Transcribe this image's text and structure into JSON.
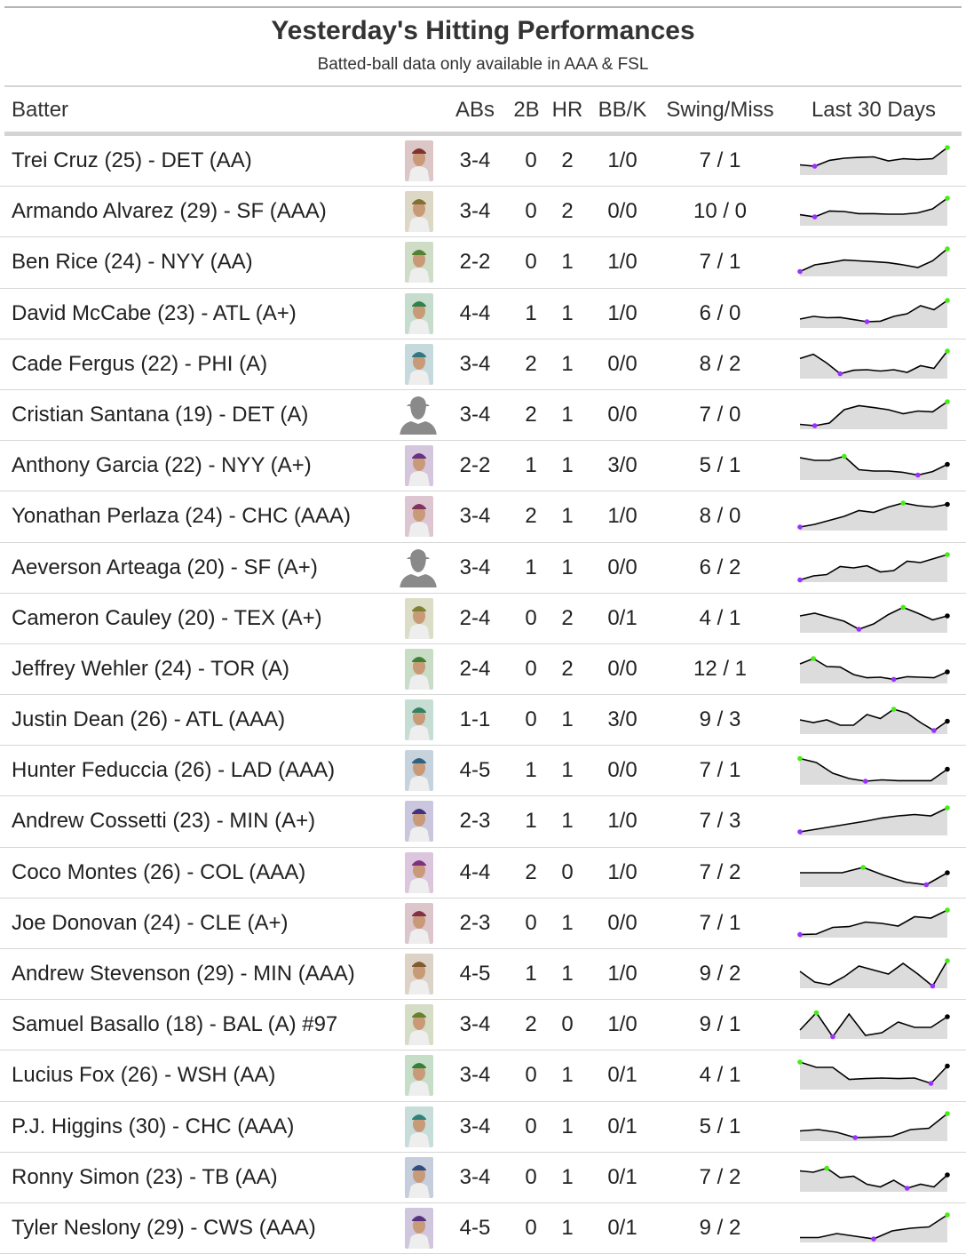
{
  "title": "Yesterday's Hitting Performances",
  "subtitle": "Batted-ball data only available in AAA & FSL",
  "columns": {
    "batter": "Batter",
    "abs": "ABs",
    "doubles": "2B",
    "hr": "HR",
    "bbk": "BB/K",
    "swing_miss": "Swing/Miss",
    "last30": "Last 30 Days"
  },
  "colors": {
    "fill": "#dcdcdc",
    "line": "#000000",
    "max_dot": "#44ee11",
    "min_dot": "#9b30ff",
    "last_dot": "#000000"
  },
  "rows": [
    {
      "batter": "Trei Cruz (25) - DET (AA)",
      "photo": "player-photo",
      "abs": "3-4",
      "doubles": "0",
      "hr": "2",
      "bbk": "1/0",
      "swing_miss": "7 / 1",
      "spark": [
        0.35,
        0.3,
        0.52,
        0.6,
        0.63,
        0.65,
        0.5,
        0.58,
        0.55,
        0.58,
        1.0
      ]
    },
    {
      "batter": "Armando Alvarez (29) - SF (AAA)",
      "photo": "player-photo",
      "abs": "3-4",
      "doubles": "0",
      "hr": "2",
      "bbk": "0/0",
      "swing_miss": "10 / 0",
      "spark": [
        0.38,
        0.3,
        0.52,
        0.5,
        0.42,
        0.42,
        0.4,
        0.4,
        0.45,
        0.6,
        1.0
      ]
    },
    {
      "batter": "Ben Rice (24) - NYY (AA)",
      "photo": "player-photo",
      "abs": "2-2",
      "doubles": "0",
      "hr": "1",
      "bbk": "1/0",
      "swing_miss": "7 / 1",
      "spark": [
        0.15,
        0.4,
        0.48,
        0.58,
        0.55,
        0.52,
        0.48,
        0.4,
        0.3,
        0.55,
        1.0
      ]
    },
    {
      "batter": "David McCabe (23) - ATL (A+)",
      "photo": "player-photo",
      "abs": "4-4",
      "doubles": "1",
      "hr": "1",
      "bbk": "1/0",
      "swing_miss": "6 / 0",
      "spark": [
        0.3,
        0.4,
        0.35,
        0.36,
        0.28,
        0.2,
        0.22,
        0.4,
        0.5,
        0.8,
        0.65,
        1.0
      ]
    },
    {
      "batter": "Cade Fergus (22) - PHI (A)",
      "photo": "player-photo",
      "abs": "3-4",
      "doubles": "2",
      "hr": "1",
      "bbk": "0/0",
      "swing_miss": "8 / 2",
      "spark": [
        0.72,
        0.88,
        0.55,
        0.15,
        0.28,
        0.3,
        0.25,
        0.3,
        0.2,
        0.45,
        0.35,
        1.0
      ]
    },
    {
      "batter": "Cristian Santana (19) - DET (A)",
      "photo": "silhouette",
      "abs": "3-4",
      "doubles": "2",
      "hr": "1",
      "bbk": "0/0",
      "swing_miss": "7 / 0",
      "spark": [
        0.15,
        0.1,
        0.2,
        0.7,
        0.85,
        0.78,
        0.7,
        0.55,
        0.65,
        0.62,
        1.0
      ]
    },
    {
      "batter": "Anthony Garcia (22) - NYY (A+)",
      "photo": "player-photo",
      "abs": "2-2",
      "doubles": "1",
      "hr": "1",
      "bbk": "3/0",
      "swing_miss": "5 / 1",
      "spark": [
        0.8,
        0.7,
        0.7,
        0.85,
        0.35,
        0.3,
        0.3,
        0.25,
        0.15,
        0.28,
        0.55
      ]
    },
    {
      "batter": "Yonathan Perlaza (24) - CHC (AAA)",
      "photo": "player-photo",
      "abs": "3-4",
      "doubles": "2",
      "hr": "1",
      "bbk": "1/0",
      "swing_miss": "8 / 0",
      "spark": [
        0.1,
        0.2,
        0.35,
        0.5,
        0.72,
        0.65,
        0.85,
        1.0,
        0.9,
        0.85,
        0.95
      ]
    },
    {
      "batter": "Aeverson Arteaga (20) - SF (A+)",
      "photo": "silhouette",
      "abs": "3-4",
      "doubles": "1",
      "hr": "1",
      "bbk": "0/0",
      "swing_miss": "6 / 2",
      "spark": [
        0.05,
        0.2,
        0.25,
        0.55,
        0.5,
        0.58,
        0.35,
        0.4,
        0.75,
        0.7,
        0.85,
        1.0
      ]
    },
    {
      "batter": "Cameron Cauley (20) - TEX (A+)",
      "photo": "player-photo",
      "abs": "2-4",
      "doubles": "0",
      "hr": "2",
      "bbk": "0/1",
      "swing_miss": "4 / 1",
      "spark": [
        0.6,
        0.7,
        0.55,
        0.4,
        0.1,
        0.3,
        0.65,
        0.92,
        0.7,
        0.45,
        0.6
      ]
    },
    {
      "batter": "Jeffrey Wehler (24) - TOR (A)",
      "photo": "player-photo",
      "abs": "2-4",
      "doubles": "0",
      "hr": "2",
      "bbk": "0/0",
      "swing_miss": "12 / 1",
      "spark": [
        0.7,
        0.9,
        0.6,
        0.58,
        0.3,
        0.18,
        0.2,
        0.12,
        0.22,
        0.2,
        0.18,
        0.4
      ]
    },
    {
      "batter": "Justin Dean (26) - ATL (AAA)",
      "photo": "player-photo",
      "abs": "1-1",
      "doubles": "0",
      "hr": "1",
      "bbk": "3/0",
      "swing_miss": "9 / 3",
      "spark": [
        0.5,
        0.4,
        0.5,
        0.3,
        0.3,
        0.7,
        0.55,
        0.9,
        0.75,
        0.4,
        0.1,
        0.45
      ]
    },
    {
      "batter": "Hunter Feduccia (26) - LAD (AAA)",
      "photo": "player-photo",
      "abs": "4-5",
      "doubles": "1",
      "hr": "1",
      "bbk": "0/0",
      "swing_miss": "7 / 1",
      "spark": [
        0.95,
        0.8,
        0.4,
        0.2,
        0.1,
        0.15,
        0.12,
        0.12,
        0.12,
        0.55
      ]
    },
    {
      "batter": "Andrew Cossetti (23) - MIN (A+)",
      "photo": "player-photo",
      "abs": "2-3",
      "doubles": "1",
      "hr": "1",
      "bbk": "1/0",
      "swing_miss": "7 / 3",
      "spark": [
        0.1,
        0.2,
        0.3,
        0.4,
        0.5,
        0.62,
        0.7,
        0.75,
        0.7,
        1.0
      ]
    },
    {
      "batter": "Coco Montes (26) - COL (AAA)",
      "photo": "player-photo",
      "abs": "4-4",
      "doubles": "2",
      "hr": "0",
      "bbk": "1/0",
      "swing_miss": "7 / 2",
      "spark": [
        0.5,
        0.5,
        0.5,
        0.7,
        0.4,
        0.15,
        0.05,
        0.5
      ]
    },
    {
      "batter": "Joe Donovan (24) - CLE (A+)",
      "photo": "player-photo",
      "abs": "2-3",
      "doubles": "0",
      "hr": "1",
      "bbk": "0/0",
      "swing_miss": "7 / 1",
      "spark": [
        0.08,
        0.1,
        0.35,
        0.38,
        0.55,
        0.5,
        0.4,
        0.75,
        0.7,
        1.0
      ]
    },
    {
      "batter": "Andrew Stevenson (29) - MIN (AAA)",
      "photo": "player-photo",
      "abs": "4-5",
      "doubles": "1",
      "hr": "1",
      "bbk": "1/0",
      "swing_miss": "9 / 2",
      "spark": [
        0.6,
        0.2,
        0.1,
        0.4,
        0.8,
        0.65,
        0.5,
        0.9,
        0.5,
        0.05,
        1.0
      ]
    },
    {
      "batter": "Samuel Basallo (18) - BAL (A) #97",
      "photo": "player-photo",
      "abs": "3-4",
      "doubles": "2",
      "hr": "0",
      "bbk": "1/0",
      "swing_miss": "9 / 1",
      "spark": [
        0.3,
        0.95,
        0.05,
        0.9,
        0.1,
        0.2,
        0.6,
        0.4,
        0.4,
        0.8
      ]
    },
    {
      "batter": "Lucius Fox (26) - WSH (AA)",
      "photo": "player-photo",
      "abs": "3-4",
      "doubles": "0",
      "hr": "1",
      "bbk": "0/1",
      "swing_miss": "4 / 1",
      "spark": [
        1.0,
        0.8,
        0.8,
        0.35,
        0.38,
        0.4,
        0.38,
        0.4,
        0.2,
        0.85
      ]
    },
    {
      "batter": "P.J. Higgins (30) - CHC (AAA)",
      "photo": "player-photo",
      "abs": "3-4",
      "doubles": "0",
      "hr": "1",
      "bbk": "0/1",
      "swing_miss": "5 / 1",
      "spark": [
        0.35,
        0.4,
        0.3,
        0.1,
        0.12,
        0.15,
        0.4,
        0.45,
        1.0
      ]
    },
    {
      "batter": "Ronny Simon (23) - TB (AA)",
      "photo": "player-photo",
      "abs": "3-4",
      "doubles": "0",
      "hr": "1",
      "bbk": "0/1",
      "swing_miss": "7 / 2",
      "spark": [
        0.75,
        0.7,
        0.85,
        0.5,
        0.55,
        0.25,
        0.15,
        0.4,
        0.1,
        0.25,
        0.15,
        0.6
      ]
    },
    {
      "batter": "Tyler Neslony (29) - CWS (AAA)",
      "photo": "player-photo",
      "abs": "4-5",
      "doubles": "0",
      "hr": "1",
      "bbk": "0/1",
      "swing_miss": "9 / 2",
      "spark": [
        0.15,
        0.15,
        0.3,
        0.2,
        0.1,
        0.4,
        0.5,
        0.55,
        1.0
      ]
    }
  ],
  "chart_data": {
    "type": "table",
    "title": "Yesterday's Hitting Performances",
    "subtitle": "Batted-ball data only available in AAA & FSL",
    "columns": [
      "Batter",
      "ABs",
      "2B",
      "HR",
      "BB/K",
      "Swing/Miss",
      "Last 30 Days"
    ],
    "rows": [
      [
        "Trei Cruz (25) - DET (AA)",
        "3-4",
        "0",
        "2",
        "1/0",
        "7 / 1"
      ],
      [
        "Armando Alvarez (29) - SF (AAA)",
        "3-4",
        "0",
        "2",
        "0/0",
        "10 / 0"
      ],
      [
        "Ben Rice (24) - NYY (AA)",
        "2-2",
        "0",
        "1",
        "1/0",
        "7 / 1"
      ],
      [
        "David McCabe (23) - ATL (A+)",
        "4-4",
        "1",
        "1",
        "1/0",
        "6 / 0"
      ],
      [
        "Cade Fergus (22) - PHI (A)",
        "3-4",
        "2",
        "1",
        "0/0",
        "8 / 2"
      ],
      [
        "Cristian Santana (19) - DET (A)",
        "3-4",
        "2",
        "1",
        "0/0",
        "7 / 0"
      ],
      [
        "Anthony Garcia (22) - NYY (A+)",
        "2-2",
        "1",
        "1",
        "3/0",
        "5 / 1"
      ],
      [
        "Yonathan Perlaza (24) - CHC (AAA)",
        "3-4",
        "2",
        "1",
        "1/0",
        "8 / 0"
      ],
      [
        "Aeverson Arteaga (20) - SF (A+)",
        "3-4",
        "1",
        "1",
        "0/0",
        "6 / 2"
      ],
      [
        "Cameron Cauley (20) - TEX (A+)",
        "2-4",
        "0",
        "2",
        "0/1",
        "4 / 1"
      ],
      [
        "Jeffrey Wehler (24) - TOR (A)",
        "2-4",
        "0",
        "2",
        "0/0",
        "12 / 1"
      ],
      [
        "Justin Dean (26) - ATL (AAA)",
        "1-1",
        "0",
        "1",
        "3/0",
        "9 / 3"
      ],
      [
        "Hunter Feduccia (26) - LAD (AAA)",
        "4-5",
        "1",
        "1",
        "0/0",
        "7 / 1"
      ],
      [
        "Andrew Cossetti (23) - MIN (A+)",
        "2-3",
        "1",
        "1",
        "1/0",
        "7 / 3"
      ],
      [
        "Coco Montes (26) - COL (AAA)",
        "4-4",
        "2",
        "0",
        "1/0",
        "7 / 2"
      ],
      [
        "Joe Donovan (24) - CLE (A+)",
        "2-3",
        "0",
        "1",
        "0/0",
        "7 / 1"
      ],
      [
        "Andrew Stevenson (29) - MIN (AAA)",
        "4-5",
        "1",
        "1",
        "1/0",
        "9 / 2"
      ],
      [
        "Samuel Basallo (18) - BAL (A) #97",
        "3-4",
        "2",
        "0",
        "1/0",
        "9 / 1"
      ],
      [
        "Lucius Fox (26) - WSH (AA)",
        "3-4",
        "0",
        "1",
        "0/1",
        "4 / 1"
      ],
      [
        "P.J. Higgins (30) - CHC (AAA)",
        "3-4",
        "0",
        "1",
        "0/1",
        "5 / 1"
      ],
      [
        "Ronny Simon (23) - TB (AA)",
        "3-4",
        "0",
        "1",
        "0/1",
        "7 / 2"
      ],
      [
        "Tyler Neslony (29) - CWS (AAA)",
        "4-5",
        "0",
        "1",
        "0/1",
        "9 / 2"
      ]
    ]
  }
}
